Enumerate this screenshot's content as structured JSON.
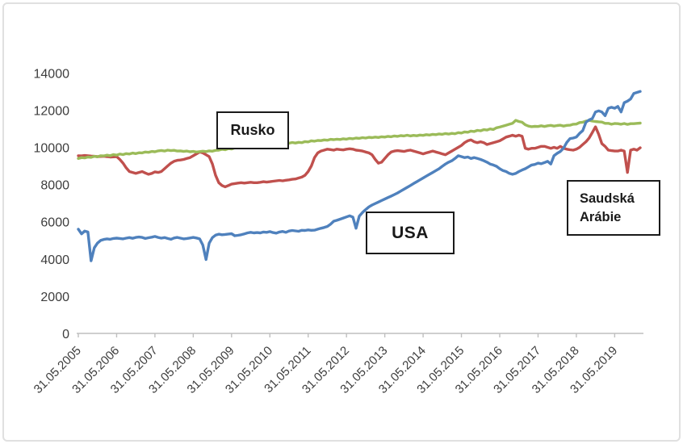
{
  "axis": {
    "line_color": "#bfbfbf",
    "label_color": "#3d3d3d",
    "y_label_font_px": 16,
    "x_label_font_px": 15
  },
  "annotations": {
    "rusko": {
      "label": "Rusko"
    },
    "usa": {
      "label": "USA"
    },
    "saudi": {
      "line1": "Saudská",
      "line2": "Arábie"
    }
  },
  "chart_data": {
    "type": "line",
    "title": "",
    "xlabel": "",
    "ylabel": "",
    "grid": false,
    "legend_position": "none (labels in framed boxes on plot)",
    "x_unit": "monthly values from 31.05.2005 to end of 2019",
    "ylim": [
      0,
      14000
    ],
    "y_ticks": [
      0,
      2000,
      4000,
      6000,
      8000,
      10000,
      12000,
      14000
    ],
    "x_tick_every_points": 12,
    "x_tick_labels": [
      "31.05.2005",
      "31.05.2006",
      "31.05.2007",
      "31.05.2008",
      "31.05.2009",
      "31.05.2010",
      "31.05.2011",
      "31.05.2012",
      "31.05.2013",
      "31.05.2014",
      "31.05.2015",
      "31.05.2016",
      "31.05.2017",
      "31.05.2018",
      "31.05.2019"
    ],
    "series": [
      {
        "name": "Saudská Arábie",
        "color": "#c0504d",
        "values": [
          9550,
          9540,
          9560,
          9550,
          9530,
          9520,
          9500,
          9510,
          9520,
          9500,
          9480,
          9490,
          9500,
          9350,
          9150,
          8900,
          8700,
          8650,
          8600,
          8650,
          8700,
          8620,
          8550,
          8600,
          8680,
          8650,
          8700,
          8850,
          9000,
          9150,
          9250,
          9300,
          9320,
          9350,
          9400,
          9450,
          9550,
          9650,
          9750,
          9700,
          9600,
          9500,
          9100,
          8500,
          8100,
          7950,
          7880,
          7950,
          8020,
          8050,
          8080,
          8100,
          8080,
          8100,
          8120,
          8100,
          8100,
          8120,
          8150,
          8130,
          8150,
          8180,
          8200,
          8220,
          8200,
          8230,
          8250,
          8280,
          8300,
          8350,
          8400,
          8500,
          8700,
          9000,
          9450,
          9700,
          9800,
          9850,
          9900,
          9880,
          9850,
          9900,
          9880,
          9860,
          9900,
          9920,
          9900,
          9850,
          9830,
          9800,
          9750,
          9700,
          9600,
          9350,
          9150,
          9200,
          9400,
          9600,
          9750,
          9800,
          9820,
          9800,
          9780,
          9820,
          9850,
          9800,
          9750,
          9700,
          9650,
          9700,
          9750,
          9800,
          9750,
          9700,
          9650,
          9600,
          9700,
          9800,
          9900,
          10000,
          10100,
          10250,
          10350,
          10400,
          10300,
          10250,
          10300,
          10250,
          10150,
          10200,
          10250,
          10300,
          10350,
          10450,
          10550,
          10600,
          10650,
          10600,
          10650,
          10600,
          9950,
          9900,
          9950,
          9950,
          10000,
          10050,
          10050,
          10000,
          9950,
          10000,
          9950,
          10050,
          9950,
          9900,
          9870,
          9850,
          9900,
          10000,
          10150,
          10300,
          10500,
          10800,
          11100,
          10700,
          10200,
          10050,
          9850,
          9820,
          9800,
          9800,
          9850,
          9800,
          8650,
          9850,
          9900,
          9850,
          9980
        ]
      },
      {
        "name": "Rusko",
        "color": "#9bbb59",
        "values": [
          9400,
          9450,
          9430,
          9480,
          9460,
          9520,
          9490,
          9550,
          9540,
          9580,
          9550,
          9610,
          9580,
          9640,
          9610,
          9660,
          9640,
          9690,
          9660,
          9710,
          9700,
          9750,
          9730,
          9780,
          9760,
          9810,
          9830,
          9800,
          9850,
          9820,
          9840,
          9800,
          9810,
          9780,
          9800,
          9760,
          9780,
          9750,
          9770,
          9790,
          9770,
          9810,
          9790,
          9840,
          9850,
          9890,
          9870,
          9930,
          9910,
          9970,
          9990,
          10010,
          10030,
          10060,
          10040,
          10100,
          10090,
          10130,
          10110,
          10160,
          10140,
          10180,
          10160,
          10210,
          10190,
          10230,
          10220,
          10260,
          10230,
          10270,
          10250,
          10310,
          10290,
          10350,
          10330,
          10370,
          10360,
          10400,
          10380,
          10430,
          10410,
          10440,
          10420,
          10460,
          10440,
          10480,
          10460,
          10500,
          10480,
          10520,
          10500,
          10540,
          10520,
          10550,
          10530,
          10570,
          10550,
          10590,
          10570,
          10610,
          10590,
          10630,
          10610,
          10650,
          10610,
          10640,
          10620,
          10660,
          10640,
          10680,
          10660,
          10700,
          10680,
          10720,
          10700,
          10740,
          10710,
          10750,
          10730,
          10790,
          10770,
          10830,
          10810,
          10870,
          10850,
          10910,
          10890,
          10950,
          10930,
          10990,
          10960,
          11050,
          11090,
          11140,
          11190,
          11240,
          11290,
          11450,
          11390,
          11350,
          11210,
          11140,
          11110,
          11130,
          11120,
          11160,
          11120,
          11160,
          11180,
          11140,
          11170,
          11190,
          11140,
          11180,
          11190,
          11240,
          11250,
          11330,
          11350,
          11410,
          11450,
          11410,
          11390,
          11370,
          11360,
          11290,
          11290,
          11240,
          11280,
          11270,
          11240,
          11280,
          11230,
          11270,
          11270,
          11290,
          11300
        ]
      },
      {
        "name": "USA",
        "color": "#4f81bd",
        "values": [
          5600,
          5350,
          5500,
          5450,
          3900,
          4600,
          4850,
          5000,
          5050,
          5080,
          5060,
          5100,
          5120,
          5100,
          5080,
          5120,
          5150,
          5110,
          5160,
          5180,
          5160,
          5100,
          5140,
          5170,
          5210,
          5160,
          5120,
          5150,
          5100,
          5060,
          5130,
          5160,
          5120,
          5080,
          5100,
          5130,
          5160,
          5130,
          5080,
          4750,
          3970,
          4850,
          5150,
          5280,
          5330,
          5300,
          5320,
          5340,
          5360,
          5250,
          5270,
          5300,
          5350,
          5400,
          5430,
          5400,
          5420,
          5400,
          5450,
          5430,
          5470,
          5420,
          5390,
          5450,
          5480,
          5430,
          5500,
          5530,
          5510,
          5490,
          5540,
          5530,
          5560,
          5540,
          5550,
          5600,
          5650,
          5690,
          5750,
          5870,
          6030,
          6080,
          6140,
          6200,
          6260,
          6320,
          6250,
          5650,
          6300,
          6500,
          6650,
          6800,
          6900,
          6980,
          7060,
          7140,
          7220,
          7300,
          7380,
          7460,
          7550,
          7650,
          7750,
          7850,
          7950,
          8050,
          8150,
          8250,
          8350,
          8450,
          8550,
          8650,
          8750,
          8850,
          8980,
          9100,
          9200,
          9280,
          9400,
          9550,
          9500,
          9450,
          9480,
          9400,
          9450,
          9400,
          9350,
          9280,
          9200,
          9100,
          9050,
          8980,
          8850,
          8750,
          8700,
          8600,
          8550,
          8600,
          8700,
          8780,
          8850,
          8950,
          9050,
          9080,
          9150,
          9120,
          9180,
          9250,
          9100,
          9550,
          9680,
          9780,
          9960,
          10260,
          10470,
          10500,
          10550,
          10750,
          10900,
          11350,
          11470,
          11550,
          11900,
          11960,
          11900,
          11700,
          12100,
          12150,
          12100,
          12200,
          11900,
          12400,
          12480,
          12600,
          12900,
          12950,
          13000
        ]
      }
    ]
  }
}
